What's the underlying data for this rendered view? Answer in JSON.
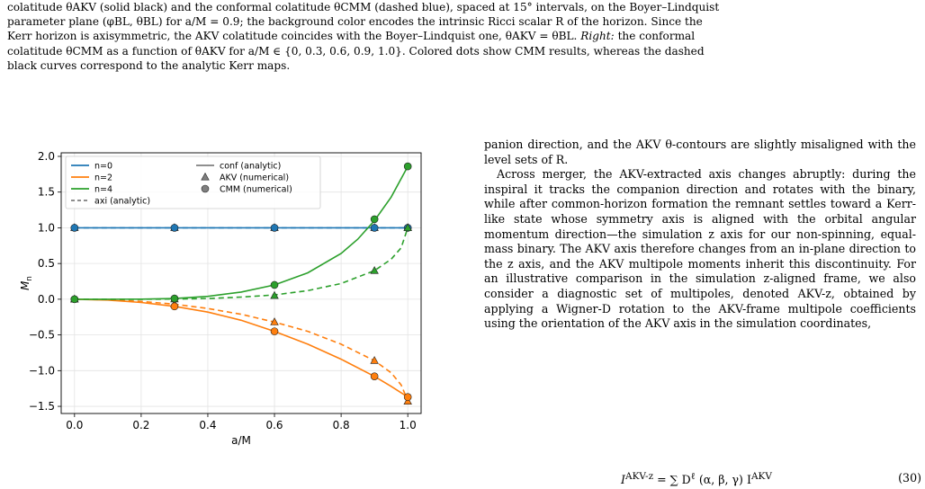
{
  "caption": {
    "line1": "colatitude θAKV (solid black) and the conformal colatitude θCMM (dashed blue), spaced at 15° intervals, on the Boyer–Lindquist",
    "line2": "parameter plane (φBL, θBL) for a/M = 0.9; the background color encodes the intrinsic Ricci scalar R of the horizon. Since the",
    "line3": "Kerr horizon is axisymmetric, the AKV colatitude coincides with the Boyer–Lindquist one, θAKV = θBL.",
    "line3_right": "Right:",
    "line3_tail": " the conformal",
    "line4": "colatitude θCMM as a function of θAKV for a/M ∈ {0, 0.3, 0.6, 0.9, 1.0}. Colored dots show CMM results, whereas the dashed",
    "line5": "black curves correspond to the analytic Kerr maps."
  },
  "body_text": {
    "p1": "panion direction, and the AKV θ-contours are slightly misaligned with the level sets of R.",
    "p2": "Across merger, the AKV-extracted axis changes abruptly: during the inspiral it tracks the companion direction and rotates with the binary, while after common-horizon formation the remnant settles toward a Kerr-like state whose symmetry axis is aligned with the orbital angular momentum direction—the simulation z axis for our non-spinning, equal-mass binary. The AKV axis therefore changes from an in-plane direction to the z axis, and the AKV multipole moments inherit this discontinuity. For an illustrative comparison in the simulation z-aligned frame, we also consider a diagnostic set of multipoles, denoted AKV-z, obtained by applying a Wigner-D rotation to the AKV-frame multipole coefficients using the orientation of the AKV axis in the simulation coordinates,"
  },
  "equation": {
    "lhs": "I",
    "lhs_sup": "AKV-z",
    "middle": " = ∑ D",
    "mid_sup": "ℓ",
    "mid_tail": "  (α, β, γ) I",
    "rhs_sup": "AKV",
    "number": "(30)"
  },
  "chart_data": {
    "type": "line",
    "xlabel": "a/M",
    "ylabel": "M_n",
    "xlim": [
      -0.04,
      1.04
    ],
    "ylim": [
      -1.6,
      2.05
    ],
    "xticks": [
      0.0,
      0.2,
      0.4,
      0.6,
      0.8,
      1.0
    ],
    "xtick_labels": [
      "0.0",
      "0.2",
      "0.4",
      "0.6",
      "0.8",
      "1.0"
    ],
    "yticks": [
      -1.5,
      -1.0,
      -0.5,
      0.0,
      0.5,
      1.0,
      1.5,
      2.0
    ],
    "ytick_labels": [
      "−1.5",
      "−1.0",
      "−0.5",
      "0.0",
      "0.5",
      "1.0",
      "1.5",
      "2.0"
    ],
    "grid": true,
    "legend_position": "top-left",
    "series": [
      {
        "name": "n=0",
        "color": "#1f77b4",
        "conf_x": [
          0,
          0.1,
          0.2,
          0.3,
          0.4,
          0.5,
          0.6,
          0.7,
          0.8,
          0.9,
          1.0
        ],
        "conf_y": [
          1,
          1,
          1,
          1,
          1,
          1,
          1,
          1,
          1,
          1,
          1
        ],
        "axi_x": [
          0,
          0.3,
          0.6,
          0.9,
          1.0
        ],
        "axi_y": [
          1,
          1,
          1,
          1,
          1
        ],
        "akv_x": [
          0,
          0.3,
          0.6,
          0.9,
          1.0
        ],
        "akv_y": [
          1,
          1,
          1,
          1,
          1
        ],
        "cmm_x": [
          0,
          0.3,
          0.6,
          0.9,
          1.0
        ],
        "cmm_y": [
          1,
          1,
          1,
          1,
          1
        ]
      },
      {
        "name": "n=2",
        "color": "#ff7f0e",
        "conf_x": [
          0,
          0.1,
          0.2,
          0.3,
          0.4,
          0.5,
          0.6,
          0.7,
          0.8,
          0.9,
          0.95,
          1.0
        ],
        "conf_y": [
          0,
          -0.012,
          -0.045,
          -0.1,
          -0.18,
          -0.295,
          -0.45,
          -0.63,
          -0.84,
          -1.08,
          -1.22,
          -1.37
        ],
        "axi_x": [
          0,
          0.1,
          0.2,
          0.3,
          0.4,
          0.5,
          0.6,
          0.7,
          0.8,
          0.9,
          0.95,
          0.98,
          1.0
        ],
        "axi_y": [
          0,
          -0.008,
          -0.03,
          -0.07,
          -0.13,
          -0.21,
          -0.32,
          -0.45,
          -0.63,
          -0.86,
          -1.03,
          -1.2,
          -1.42
        ],
        "akv_x": [
          0,
          0.3,
          0.6,
          0.9,
          1.0
        ],
        "akv_y": [
          0,
          -0.07,
          -0.32,
          -0.86,
          -1.43
        ],
        "cmm_x": [
          0,
          0.3,
          0.6,
          0.9,
          1.0
        ],
        "cmm_y": [
          0,
          -0.1,
          -0.45,
          -1.08,
          -1.37
        ]
      },
      {
        "name": "n=4",
        "color": "#2ca02c",
        "conf_x": [
          0,
          0.1,
          0.2,
          0.3,
          0.4,
          0.5,
          0.6,
          0.7,
          0.8,
          0.85,
          0.9,
          0.95,
          1.0
        ],
        "conf_y": [
          0,
          0.0,
          0.001,
          0.01,
          0.04,
          0.1,
          0.2,
          0.37,
          0.64,
          0.84,
          1.1,
          1.43,
          1.86
        ],
        "axi_x": [
          0,
          0.2,
          0.3,
          0.4,
          0.5,
          0.6,
          0.7,
          0.8,
          0.9,
          0.95,
          0.98,
          1.0
        ],
        "axi_y": [
          0,
          0.0,
          0.002,
          0.01,
          0.03,
          0.06,
          0.12,
          0.22,
          0.4,
          0.56,
          0.72,
          1.0
        ],
        "akv_x": [
          0,
          0.3,
          0.6,
          0.9,
          1.0
        ],
        "akv_y": [
          0,
          0.002,
          0.05,
          0.4,
          1.0
        ],
        "cmm_x": [
          0,
          0.3,
          0.6,
          0.9,
          1.0
        ],
        "cmm_y": [
          0,
          0.01,
          0.2,
          1.12,
          1.86
        ]
      }
    ],
    "legend": {
      "n0": "n=0",
      "n2": "n=2",
      "n4": "n=4",
      "axi": "axi (analytic)",
      "conf": "conf (analytic)",
      "akv": "AKV (numerical)",
      "cmm": "CMM (numerical)"
    }
  }
}
